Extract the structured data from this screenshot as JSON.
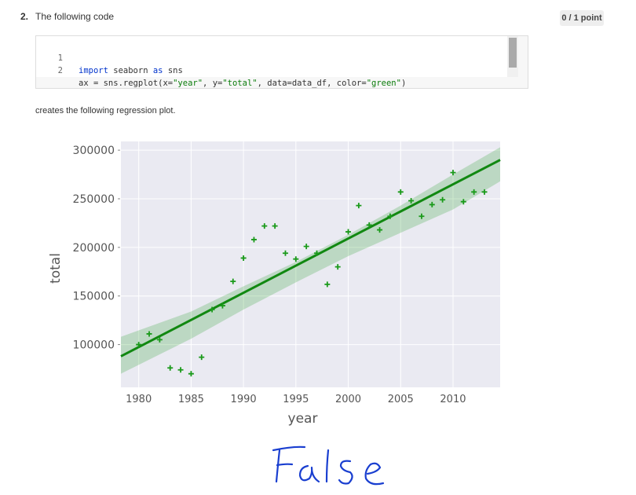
{
  "question": {
    "number": "2.",
    "text": "The following code",
    "points": "0 / 1 point",
    "after_code_text": "creates the following regression plot."
  },
  "code": {
    "lines": [
      {
        "num": "1",
        "parts": [
          [
            "kw",
            "import"
          ],
          [
            "p",
            " seaborn "
          ],
          [
            "kw",
            "as"
          ],
          [
            "p",
            " sns"
          ]
        ]
      },
      {
        "num": "2",
        "parts": [
          [
            "p",
            "ax = sns.regplot(x="
          ],
          [
            "s",
            "\"year\""
          ],
          [
            "p",
            ", y="
          ],
          [
            "s",
            "\"total\""
          ],
          [
            "p",
            ", data=data_df, color="
          ],
          [
            "s",
            "\"green\""
          ],
          [
            "p",
            ")"
          ]
        ]
      }
    ]
  },
  "handwritten_answer": "False",
  "chart_data": {
    "type": "scatter",
    "xlabel": "year",
    "ylabel": "total",
    "xlim": [
      1978.3,
      2014.5
    ],
    "ylim": [
      56000,
      309000
    ],
    "xticks": [
      1980,
      1985,
      1990,
      1995,
      2000,
      2005,
      2010
    ],
    "yticks": [
      100000,
      150000,
      200000,
      250000,
      300000
    ],
    "grid": true,
    "marker": "+",
    "color": "#1a9a1a",
    "background": "#eaeaf2",
    "points": [
      {
        "x": 1980,
        "y": 100000
      },
      {
        "x": 1981,
        "y": 111000
      },
      {
        "x": 1982,
        "y": 105000
      },
      {
        "x": 1983,
        "y": 76000
      },
      {
        "x": 1984,
        "y": 74000
      },
      {
        "x": 1985,
        "y": 70000
      },
      {
        "x": 1986,
        "y": 87000
      },
      {
        "x": 1987,
        "y": 136000
      },
      {
        "x": 1988,
        "y": 140000
      },
      {
        "x": 1989,
        "y": 165000
      },
      {
        "x": 1990,
        "y": 189000
      },
      {
        "x": 1991,
        "y": 208000
      },
      {
        "x": 1992,
        "y": 222000
      },
      {
        "x": 1993,
        "y": 222000
      },
      {
        "x": 1994,
        "y": 194000
      },
      {
        "x": 1995,
        "y": 188000
      },
      {
        "x": 1996,
        "y": 201000
      },
      {
        "x": 1997,
        "y": 194000
      },
      {
        "x": 1998,
        "y": 162000
      },
      {
        "x": 1999,
        "y": 180000
      },
      {
        "x": 2000,
        "y": 216000
      },
      {
        "x": 2001,
        "y": 243000
      },
      {
        "x": 2002,
        "y": 223000
      },
      {
        "x": 2003,
        "y": 218000
      },
      {
        "x": 2004,
        "y": 232000
      },
      {
        "x": 2005,
        "y": 257000
      },
      {
        "x": 2006,
        "y": 248000
      },
      {
        "x": 2007,
        "y": 232000
      },
      {
        "x": 2008,
        "y": 244000
      },
      {
        "x": 2009,
        "y": 249000
      },
      {
        "x": 2010,
        "y": 277000
      },
      {
        "x": 2011,
        "y": 247000
      },
      {
        "x": 2012,
        "y": 257000
      },
      {
        "x": 2013,
        "y": 257000
      }
    ],
    "regression": {
      "x0": 1978.3,
      "y0": 88000,
      "x1": 2014.5,
      "y1": 290000
    },
    "ci_band": {
      "x": [
        1978.3,
        1985,
        1990,
        1995,
        2000,
        2005,
        2010,
        2014.5
      ],
      "upper": [
        108000,
        134000,
        160000,
        185000,
        213000,
        243000,
        275000,
        303000
      ],
      "lower": [
        70000,
        106000,
        136000,
        164000,
        191000,
        215000,
        239000,
        268000
      ]
    }
  }
}
